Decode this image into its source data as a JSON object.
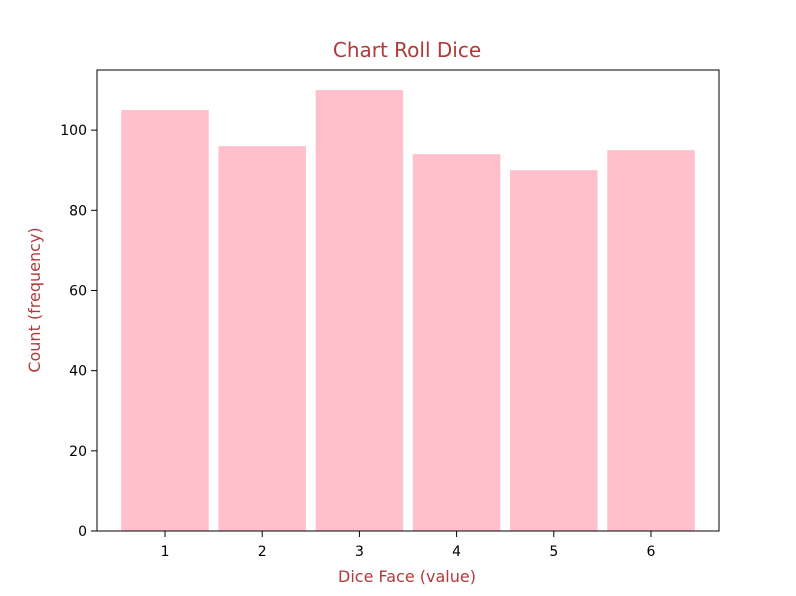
{
  "colors": {
    "bar": "#ffc0cb",
    "title": "#b03a3a",
    "axis_label": "#b03a3a",
    "axes": "#000000",
    "background": "#ffffff"
  },
  "chart_data": {
    "type": "bar",
    "title": "Chart Roll Dice",
    "xlabel": "Dice Face (value)",
    "ylabel": "Count (frequency)",
    "categories": [
      "1",
      "2",
      "3",
      "4",
      "5",
      "6"
    ],
    "values": [
      105,
      96,
      110,
      94,
      90,
      95
    ],
    "ylim": [
      0,
      115
    ],
    "xlim": [
      0.3,
      6.7
    ],
    "yticks": [
      0,
      20,
      40,
      60,
      80,
      100
    ],
    "grid": false,
    "legend": "none"
  }
}
